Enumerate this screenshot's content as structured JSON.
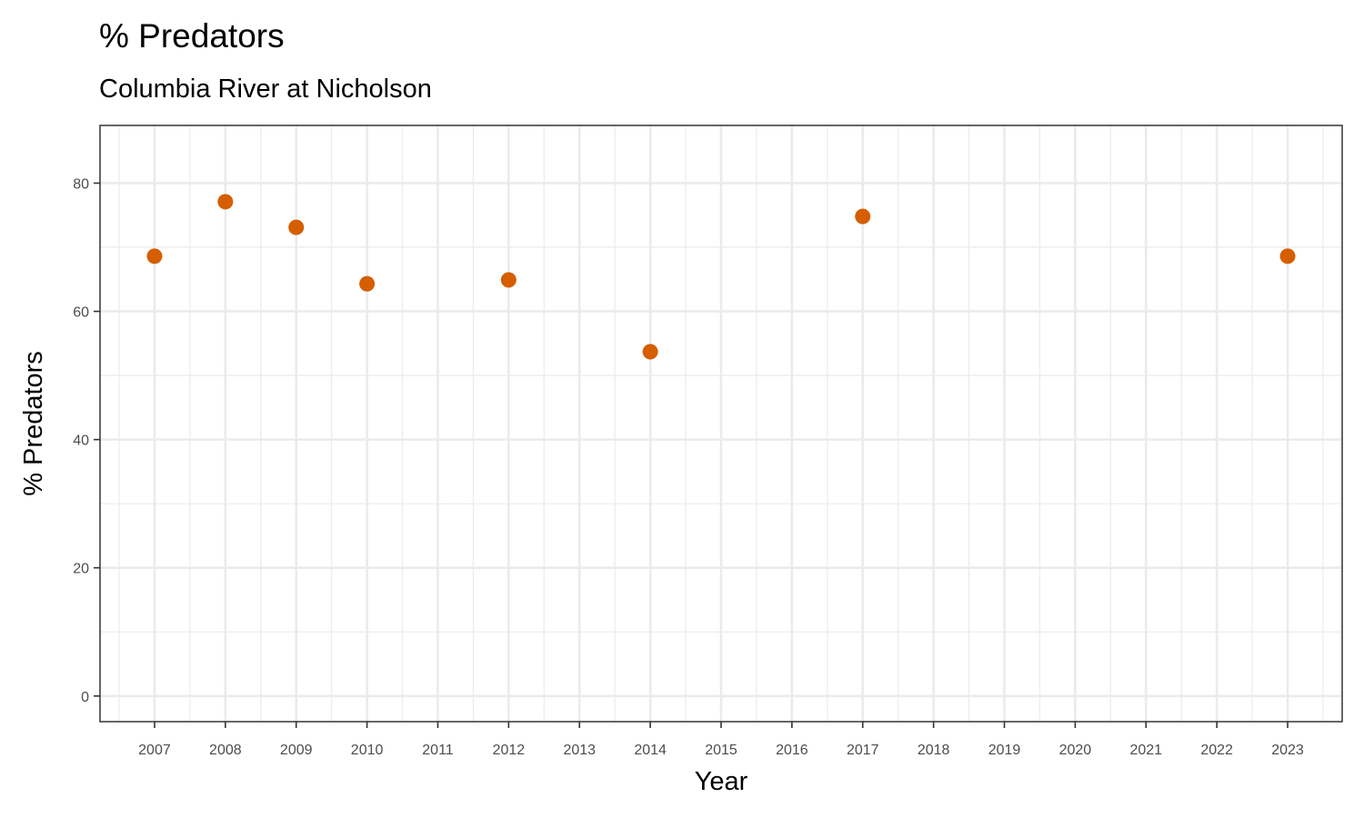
{
  "chart_data": {
    "type": "scatter",
    "title": "% Predators",
    "subtitle": "Columbia River at Nicholson",
    "xlabel": "Year",
    "ylabel": "% Predators",
    "x_ticks": [
      "2007",
      "2008",
      "2009",
      "2010",
      "2011",
      "2012",
      "2013",
      "2014",
      "2015",
      "2016",
      "2017",
      "2018",
      "2019",
      "2020",
      "2021",
      "2022",
      "2023"
    ],
    "y_ticks": [
      0,
      20,
      40,
      60,
      80
    ],
    "xlim": [
      2006.23,
      2023.77
    ],
    "ylim": [
      -4,
      89
    ],
    "grid": true,
    "point_color": "#D55E00",
    "points": [
      {
        "x": 2007,
        "y": 68.6
      },
      {
        "x": 2008,
        "y": 77.1
      },
      {
        "x": 2009,
        "y": 73.1
      },
      {
        "x": 2010,
        "y": 64.3
      },
      {
        "x": 2012,
        "y": 64.9
      },
      {
        "x": 2014,
        "y": 53.7
      },
      {
        "x": 2017,
        "y": 74.8
      },
      {
        "x": 2023,
        "y": 68.6
      }
    ]
  }
}
